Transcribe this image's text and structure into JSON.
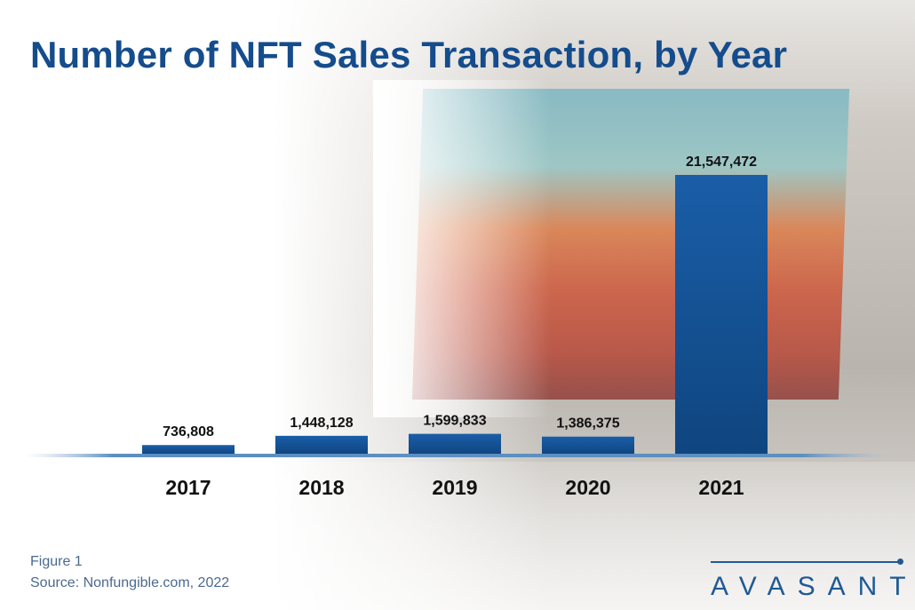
{
  "chart_data": {
    "type": "bar",
    "title": "Number of NFT Sales Transaction, by Year",
    "categories": [
      "2017",
      "2018",
      "2019",
      "2020",
      "2021"
    ],
    "values": [
      736808,
      1448128,
      1599833,
      1386375,
      21547472
    ],
    "value_labels": [
      "736,808",
      "1,448,128",
      "1,599,833",
      "1,386,375",
      "21,547,472"
    ],
    "xlabel": "",
    "ylabel": "",
    "ylim": [
      0,
      21547472
    ],
    "grid": false,
    "bar_color": "#1656a0"
  },
  "footer": {
    "figure": "Figure 1",
    "source": "Source: Nonfungible.com, 2022"
  },
  "logo": "AVASANT"
}
